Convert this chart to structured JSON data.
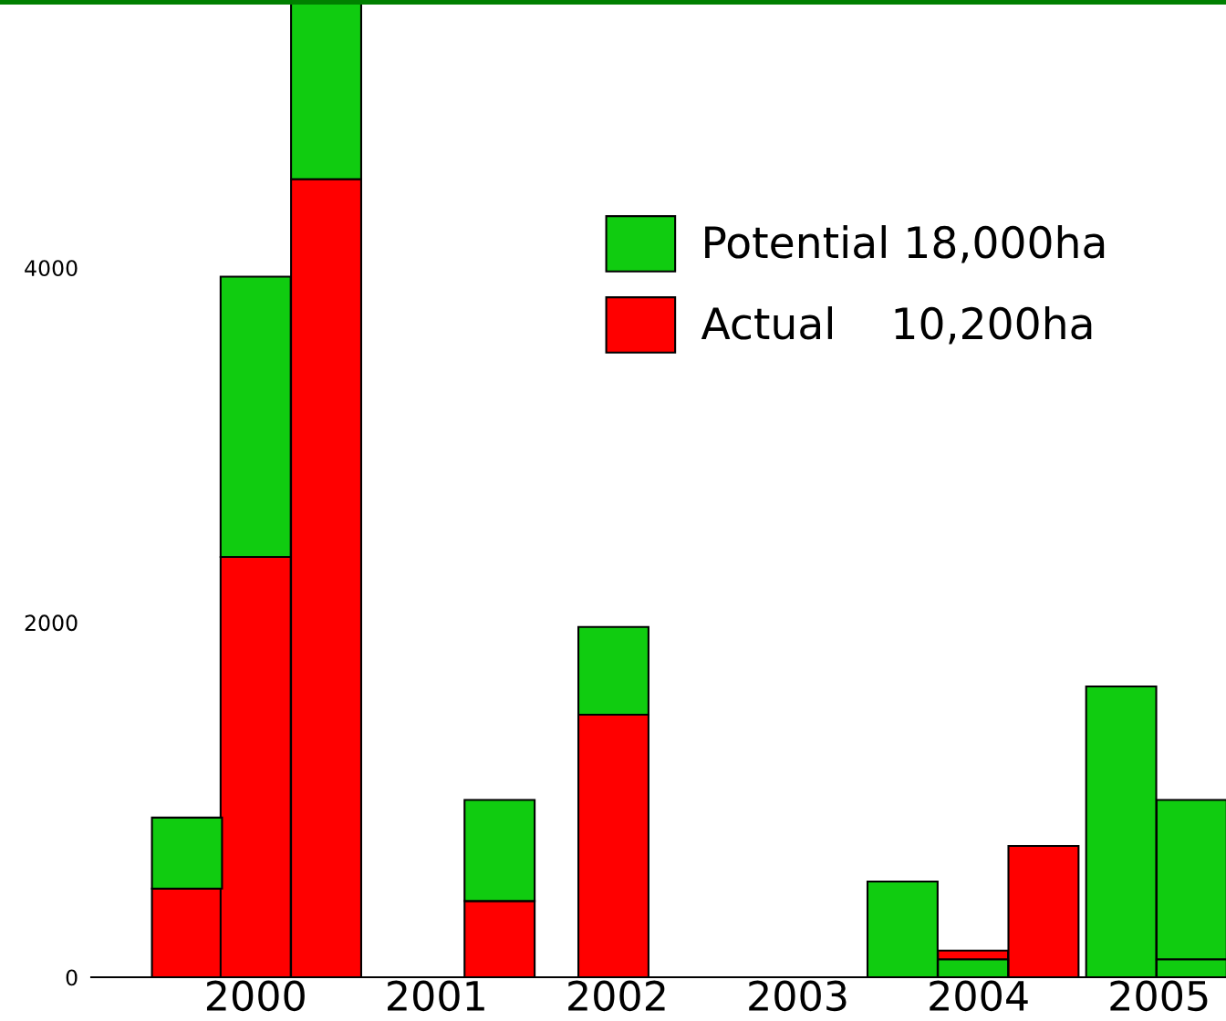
{
  "chart_data": {
    "type": "bar",
    "x": [
      1999.62,
      2000.0,
      2000.39,
      2001.35,
      2001.98,
      2003.58,
      2003.97,
      2004.36,
      2004.79,
      2005.18
    ],
    "series": [
      {
        "name": "Actual    10,200ha",
        "color": "#ff0000",
        "values": [
          500,
          2370,
          4500,
          430,
          1480,
          null,
          50,
          740,
          null,
          null
        ],
        "base": [
          0,
          0,
          0,
          0,
          0,
          null,
          100,
          0,
          null,
          null
        ]
      },
      {
        "name": "Potential 18,000ha",
        "color": "#10cc10",
        "values": [
          400,
          1580,
          1000,
          570,
          495,
          540,
          100,
          null,
          1640,
          900
        ],
        "base": [
          500,
          2370,
          4500,
          430,
          1480,
          0,
          0,
          null,
          0,
          100
        ]
      },
      {
        "color": "#10cc10",
        "values": [
          null,
          null,
          null,
          null,
          null,
          null,
          null,
          null,
          null,
          100
        ],
        "base": [
          null,
          null,
          null,
          null,
          null,
          null,
          null,
          null,
          null,
          0
        ]
      }
    ],
    "xlim": [
      1999.09,
      2005.37
    ],
    "xticks": [
      2000,
      2001,
      2002,
      2003,
      2004,
      2005
    ],
    "ylim": [
      0,
      5500
    ],
    "yticks": [
      0,
      2000,
      4000
    ],
    "grid": false,
    "legend": "top right"
  }
}
